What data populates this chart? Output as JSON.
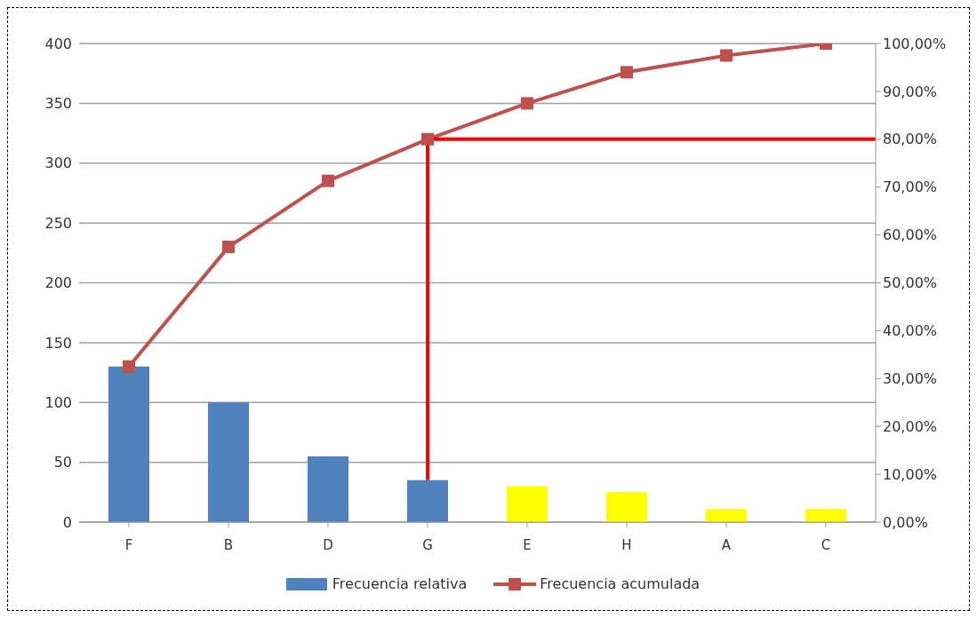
{
  "chart_data": {
    "type": "bar",
    "categories": [
      "F",
      "B",
      "D",
      "G",
      "E",
      "H",
      "A",
      "C"
    ],
    "series": [
      {
        "name": "Frecuencia relativa",
        "colors": [
          "#4f81bd",
          "#4f81bd",
          "#4f81bd",
          "#4f81bd",
          "#ffff00",
          "#ffff00",
          "#ffff00",
          "#ffff00"
        ],
        "color": "#4f81bd",
        "values": [
          130,
          100,
          55,
          35,
          30,
          25,
          11,
          11
        ]
      },
      {
        "name": "Frecuencia acumulada",
        "type": "line",
        "axis": "y2",
        "color": "#c0504d",
        "marker": "square",
        "values": [
          32.5,
          57.5,
          71.3,
          80,
          87.5,
          94,
          97.5,
          100
        ]
      }
    ],
    "ylim": [
      0,
      400
    ],
    "yticks": [
      0,
      50,
      100,
      150,
      200,
      250,
      300,
      350,
      400
    ],
    "y2lim": [
      0,
      100
    ],
    "y2ticks": [
      {
        "value": 0,
        "label": "0,00%"
      },
      {
        "value": 10,
        "label": "10,00%"
      },
      {
        "value": 20,
        "label": "20,00%"
      },
      {
        "value": 30,
        "label": "30,00%"
      },
      {
        "value": 40,
        "label": "40,00%"
      },
      {
        "value": 50,
        "label": "50,00%"
      },
      {
        "value": 60,
        "label": "60,00%"
      },
      {
        "value": 70,
        "label": "70,00%"
      },
      {
        "value": 80,
        "label": "80,00%"
      },
      {
        "value": 90,
        "label": "90,00%"
      },
      {
        "value": 100,
        "label": "100,00%"
      }
    ],
    "ref_lines": [
      {
        "axis": "y2",
        "value": 80,
        "color": "#ff0000"
      },
      {
        "axis": "x",
        "value": "G",
        "color": "#ff0000"
      }
    ],
    "grid": "y",
    "legend": "bottom"
  }
}
